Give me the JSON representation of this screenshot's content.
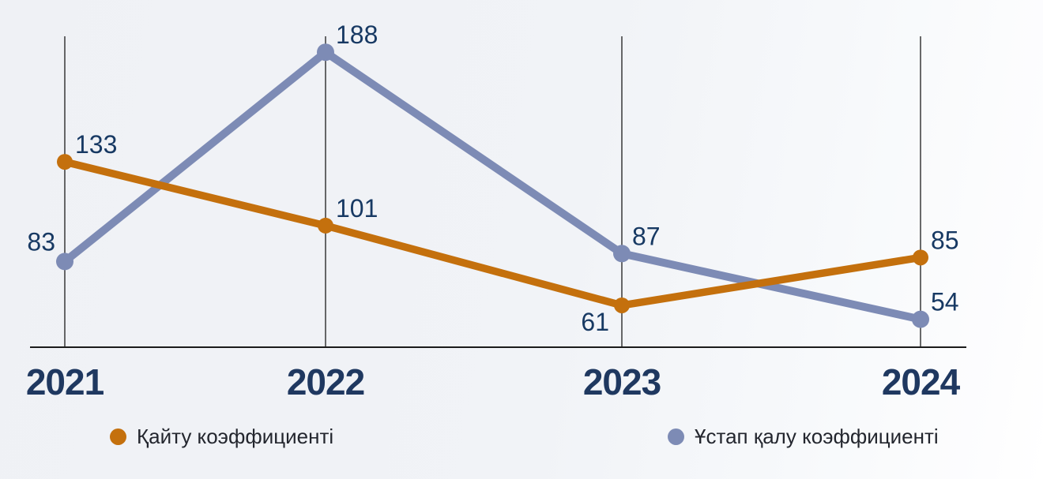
{
  "chart_data": {
    "type": "line",
    "x": [
      "2021",
      "2022",
      "2023",
      "2024"
    ],
    "series": [
      {
        "name": "Қайту коэффициенті",
        "color": "#c4700d",
        "values": [
          133,
          101,
          61,
          85
        ],
        "label_positions": [
          "above-right",
          "above-right",
          "below-left",
          "above-right"
        ]
      },
      {
        "name": "Ұстап қалу коэффициенті",
        "color": "#7d8bb5",
        "values": [
          83,
          188,
          87,
          54
        ],
        "label_positions": [
          "above-left",
          "above-right",
          "above-right",
          "above-right"
        ]
      }
    ],
    "title": "",
    "xlabel": "",
    "ylabel": "",
    "ylim": [
      40,
      196
    ],
    "grid": "vertical-gridlines-per-category-only",
    "legend_position": "bottom",
    "data_labels_shown": true
  },
  "styles": {
    "background_start": "#eff1f5",
    "background_end": "#ffffff",
    "gridline_color": "#1b1b1b",
    "axis_color": "#1b1b1b",
    "data_label_color": "#173963",
    "year_label_color": "#1f3860",
    "legend_text_color": "#23262e"
  }
}
